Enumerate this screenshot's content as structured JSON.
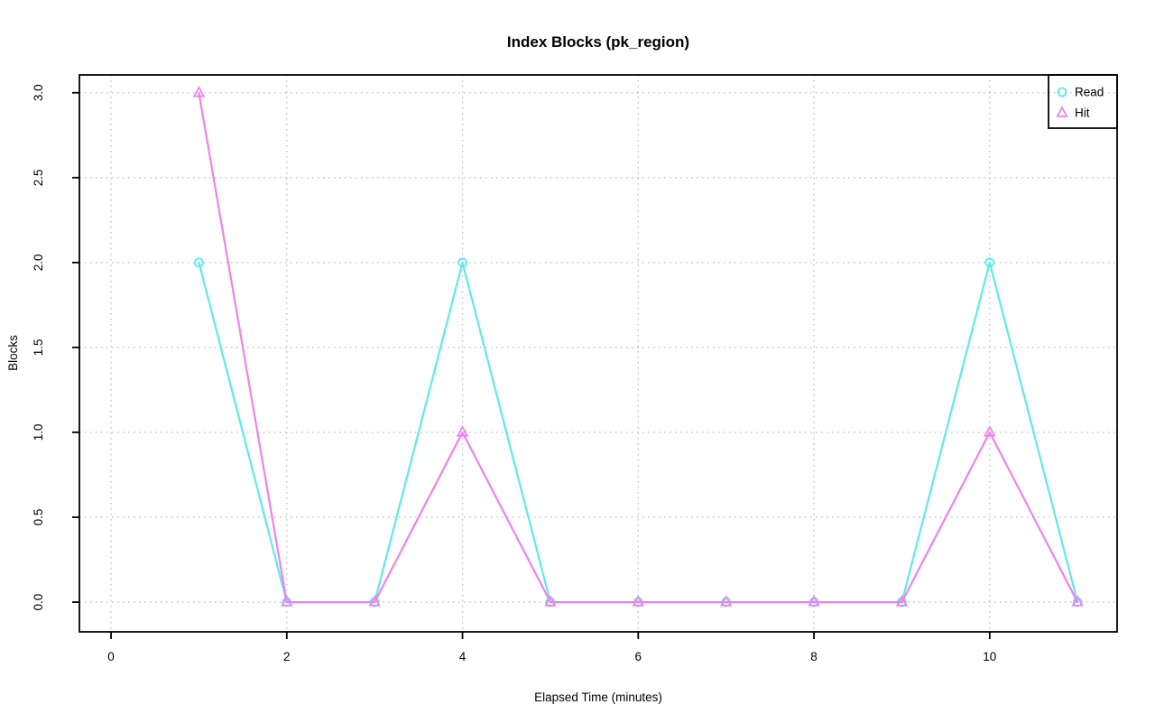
{
  "chart_data": {
    "type": "line",
    "title": "Index Blocks (pk_region)",
    "xlabel": "Elapsed Time (minutes)",
    "ylabel": "Blocks",
    "x": [
      1,
      2,
      3,
      4,
      5,
      6,
      7,
      8,
      9,
      10,
      11
    ],
    "series": [
      {
        "name": "Read",
        "marker": "circle",
        "color": "#5FE9E9",
        "values": [
          2,
          0,
          0,
          2,
          0,
          0,
          0,
          0,
          0,
          2,
          0
        ]
      },
      {
        "name": "Hit",
        "marker": "triangle",
        "color": "#EE82EE",
        "values": [
          3,
          0,
          0,
          1,
          0,
          0,
          0,
          0,
          0,
          1,
          0
        ]
      }
    ],
    "xtick_labels": [
      "0",
      "2",
      "4",
      "6",
      "8",
      "10"
    ],
    "xtick_values": [
      0,
      2,
      4,
      6,
      8,
      10
    ],
    "ytick_labels": [
      "0.0",
      "0.5",
      "1.0",
      "1.5",
      "2.0",
      "2.5",
      "3.0"
    ],
    "ytick_values": [
      0,
      0.5,
      1,
      1.5,
      2,
      2.5,
      3
    ],
    "xlim": [
      -0.36,
      11.45
    ],
    "ylim": [
      -0.175,
      3.105
    ],
    "grid": true,
    "grid_style": "dotted",
    "legend_position": "top-right",
    "colors": {
      "grid": "#BDBDBD",
      "axis": "#000000",
      "background": "#FFFFFF",
      "title": "#000000"
    }
  }
}
